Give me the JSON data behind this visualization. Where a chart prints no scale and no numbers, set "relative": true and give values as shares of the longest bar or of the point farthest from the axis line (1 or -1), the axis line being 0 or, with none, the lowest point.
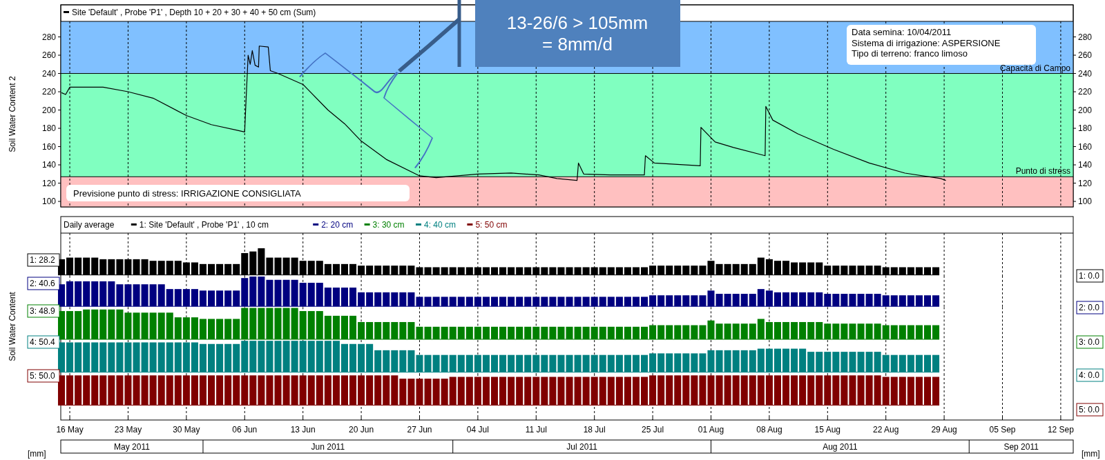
{
  "chart_data": [
    {
      "type": "line",
      "xlim": [
        "2011-05-14T22:00",
        "2011-09-13T12:00"
      ],
      "xticks": [
        {
          "value": "2011-05-16",
          "label": null
        },
        {
          "value": "2011-05-23",
          "label": null
        },
        {
          "value": "2011-05-30",
          "label": null
        },
        {
          "value": "2011-06-06",
          "label": null
        },
        {
          "value": "2011-06-13",
          "label": null
        },
        {
          "value": "2011-06-20",
          "label": null
        },
        {
          "value": "2011-06-27",
          "label": null
        },
        {
          "value": "2011-07-04",
          "label": null
        },
        {
          "value": "2011-07-11",
          "label": null
        },
        {
          "value": "2011-07-18",
          "label": null
        },
        {
          "value": "2011-07-25",
          "label": null
        },
        {
          "value": "2011-08-01",
          "label": null
        },
        {
          "value": "2011-08-08",
          "label": null
        },
        {
          "value": "2011-08-15",
          "label": null
        },
        {
          "value": "2011-08-22",
          "label": null
        },
        {
          "value": "2011-08-29",
          "label": null
        },
        {
          "value": "2011-09-05",
          "label": null
        },
        {
          "value": "2011-09-12",
          "label": null
        }
      ],
      "ylim": [
        94,
        297
      ],
      "yticks": [
        100,
        120,
        140,
        160,
        180,
        200,
        220,
        240,
        260,
        280
      ],
      "y2lim": [
        94,
        297
      ],
      "y2ticks": [
        100,
        120,
        140,
        160,
        180,
        200,
        220,
        240,
        260,
        280
      ],
      "ylabel": "Soil Water Content 2",
      "tick_labels": "y",
      "grid": "x",
      "legend": "top",
      "bands": [
        {
          "axis": "y",
          "from": 240,
          "to": 297,
          "color": "#80c0ff"
        },
        {
          "axis": "y",
          "from": 127,
          "to": 240,
          "color": "#80ffc0"
        },
        {
          "axis": "y",
          "from": 94,
          "to": 127,
          "color": "#ffc0c0"
        }
      ],
      "ref_lines": [
        {
          "axis": "y",
          "value": 240,
          "label": "Capacità di Campo",
          "color": "#000000"
        },
        {
          "axis": "y",
          "value": 127,
          "label": "Punto di stress",
          "color": "#000000"
        }
      ],
      "annotations": [
        "Previsione punto di stress: IRRIGAZIONE CONSIGLIATA",
        "Data semina: 10/04/2011\nSistema di irrigazione: ASPERSIONE\nTipo di terreno: franco limoso",
        "13-26/6 > 105mm\n= 8mm/d"
      ],
      "series": [
        {
          "name": "Site 'Default' , Probe 'P1' , Depth 10 + 20 + 30 + 40 + 50 cm (Sum)",
          "color": "#000000",
          "x": [
            "2011-05-15T00:00",
            "2011-05-15T12:00",
            "2011-05-16T00:00",
            "2011-05-20",
            "2011-05-23",
            "2011-05-26",
            "2011-05-30",
            "2011-06-02",
            "2011-06-05",
            "2011-06-06T00:00",
            "2011-06-06T04:00",
            "2011-06-06T10:00",
            "2011-06-06T16:00",
            "2011-06-06T22:00",
            "2011-06-07T06:00",
            "2011-06-07T16:00",
            "2011-06-07T18:00",
            "2011-06-08T20:00",
            "2011-06-09T02:00",
            "2011-06-10",
            "2011-06-13",
            "2011-06-16",
            "2011-06-18",
            "2011-06-20",
            "2011-06-23",
            "2011-06-27",
            "2011-06-29",
            "2011-07-04",
            "2011-07-08",
            "2011-07-11T08:00",
            "2011-07-13T12:00",
            "2011-07-15T22:00",
            "2011-07-16T02:00",
            "2011-07-16T17:00",
            "2011-07-19T22:00",
            "2011-07-24T00:00",
            "2011-07-24T03:00",
            "2011-07-25T05:00",
            "2011-07-30T17:00",
            "2011-07-30T19:00",
            "2011-08-01T12:00",
            "2011-08-03T17:00",
            "2011-08-07T12:00",
            "2011-08-07T14:00",
            "2011-08-08T10:00",
            "2011-08-11T10:00",
            "2011-08-15T17:00",
            "2011-08-20",
            "2011-08-24T07:00",
            "2011-08-28T14:00",
            "2011-08-29T05:00"
          ],
          "values": [
            219,
            217,
            225,
            225,
            220,
            213,
            194,
            184,
            178,
            176,
            211,
            260,
            250,
            265,
            249,
            247,
            270,
            269,
            243,
            240,
            228,
            200,
            185,
            166,
            146,
            128,
            126,
            130,
            131,
            129,
            125,
            123,
            142,
            130,
            129,
            129,
            150,
            142,
            139,
            181,
            165,
            159,
            150,
            204,
            189,
            174,
            157,
            142,
            131,
            125,
            123
          ]
        }
      ]
    },
    {
      "type": "bar",
      "relative": true,
      "xlim": [
        "2011-05-14T22:00",
        "2011-09-13T12:00"
      ],
      "xticks": [
        {
          "value": "2011-05-16",
          "label": null
        },
        {
          "value": "2011-05-23",
          "label": null
        },
        {
          "value": "2011-05-30",
          "label": null
        },
        {
          "value": "2011-06-06",
          "label": null
        },
        {
          "value": "2011-06-13",
          "label": null
        },
        {
          "value": "2011-06-20",
          "label": null
        },
        {
          "value": "2011-06-27",
          "label": null
        },
        {
          "value": "2011-07-04",
          "label": null
        },
        {
          "value": "2011-07-11",
          "label": null
        },
        {
          "value": "2011-07-18",
          "label": null
        },
        {
          "value": "2011-07-25",
          "label": null
        },
        {
          "value": "2011-08-01",
          "label": null
        },
        {
          "value": "2011-08-08",
          "label": null
        },
        {
          "value": "2011-08-15",
          "label": null
        },
        {
          "value": "2011-08-22",
          "label": null
        },
        {
          "value": "2011-08-29",
          "label": null
        },
        {
          "value": "2011-09-05",
          "label": null
        },
        {
          "value": "2011-09-12",
          "label": null
        }
      ],
      "tick_labels": false,
      "grid": "x",
      "legend": "top",
      "legend_title": "Daily average",
      "annotations": [
        "1: 28.2",
        "1: 0.0"
      ],
      "x": [
        "2011-05-15",
        "2011-05-16",
        "2011-05-17",
        "2011-05-18",
        "2011-05-19",
        "2011-05-20",
        "2011-05-21",
        "2011-05-22",
        "2011-05-23",
        "2011-05-24",
        "2011-05-25",
        "2011-05-26",
        "2011-05-27",
        "2011-05-28",
        "2011-05-29",
        "2011-05-30",
        "2011-05-31",
        "2011-06-01",
        "2011-06-02",
        "2011-06-03",
        "2011-06-04",
        "2011-06-05",
        "2011-06-06",
        "2011-06-07",
        "2011-06-08",
        "2011-06-09",
        "2011-06-10",
        "2011-06-11",
        "2011-06-12",
        "2011-06-13",
        "2011-06-14",
        "2011-06-15",
        "2011-06-16",
        "2011-06-17",
        "2011-06-18",
        "2011-06-19",
        "2011-06-20",
        "2011-06-21",
        "2011-06-22",
        "2011-06-23",
        "2011-06-24",
        "2011-06-25",
        "2011-06-26",
        "2011-06-27",
        "2011-06-28",
        "2011-06-29",
        "2011-06-30",
        "2011-07-01",
        "2011-07-02",
        "2011-07-03",
        "2011-07-04",
        "2011-07-05",
        "2011-07-06",
        "2011-07-07",
        "2011-07-08",
        "2011-07-09",
        "2011-07-10",
        "2011-07-11",
        "2011-07-12",
        "2011-07-13",
        "2011-07-14",
        "2011-07-15",
        "2011-07-16",
        "2011-07-17",
        "2011-07-18",
        "2011-07-19",
        "2011-07-20",
        "2011-07-21",
        "2011-07-22",
        "2011-07-23",
        "2011-07-24",
        "2011-07-25",
        "2011-07-26",
        "2011-07-27",
        "2011-07-28",
        "2011-07-29",
        "2011-07-30",
        "2011-07-31",
        "2011-08-01",
        "2011-08-02",
        "2011-08-03",
        "2011-08-04",
        "2011-08-05",
        "2011-08-06",
        "2011-08-07",
        "2011-08-08",
        "2011-08-09",
        "2011-08-10",
        "2011-08-11",
        "2011-08-12",
        "2011-08-13",
        "2011-08-14",
        "2011-08-15",
        "2011-08-16",
        "2011-08-17",
        "2011-08-18",
        "2011-08-19",
        "2011-08-20",
        "2011-08-21",
        "2011-08-22",
        "2011-08-23",
        "2011-08-24",
        "2011-08-25",
        "2011-08-26",
        "2011-08-27",
        "2011-08-28"
      ],
      "series": [
        {
          "name": "1: Site 'Default' , Probe 'P1' , 10 cm",
          "color": "#000000",
          "values": [
            0.59,
            0.65,
            0.65,
            0.65,
            0.65,
            0.59,
            0.59,
            0.59,
            0.59,
            0.59,
            0.59,
            0.53,
            0.53,
            0.53,
            0.53,
            0.47,
            0.47,
            0.41,
            0.41,
            0.41,
            0.41,
            0.41,
            0.82,
            0.88,
            1,
            0.65,
            0.65,
            0.65,
            0.65,
            0.53,
            0.53,
            0.53,
            0.41,
            0.41,
            0.41,
            0.41,
            0.35,
            0.35,
            0.35,
            0.35,
            0.35,
            0.35,
            0.35,
            0.29,
            0.29,
            0.29,
            0.29,
            0.29,
            0.29,
            0.29,
            0.29,
            0.29,
            0.29,
            0.29,
            0.29,
            0.29,
            0.29,
            0.29,
            0.29,
            0.29,
            0.29,
            0.29,
            0.29,
            0.29,
            0.29,
            0.29,
            0.29,
            0.29,
            0.29,
            0.29,
            0.29,
            0.35,
            0.35,
            0.35,
            0.35,
            0.35,
            0.35,
            0.35,
            0.53,
            0.41,
            0.41,
            0.41,
            0.41,
            0.41,
            0.65,
            0.59,
            0.53,
            0.53,
            0.47,
            0.47,
            0.47,
            0.47,
            0.35,
            0.35,
            0.35,
            0.35,
            0.35,
            0.35,
            0.35,
            0.29,
            0.29,
            0.29,
            0.29,
            0.29,
            0.29,
            0.29
          ]
        }
      ]
    },
    {
      "type": "bar",
      "relative": true,
      "xlim": [
        "2011-05-14T22:00",
        "2011-09-13T12:00"
      ],
      "xticks": [
        {
          "value": "2011-05-16",
          "label": null
        },
        {
          "value": "2011-05-23",
          "label": null
        },
        {
          "value": "2011-05-30",
          "label": null
        },
        {
          "value": "2011-06-06",
          "label": null
        },
        {
          "value": "2011-06-13",
          "label": null
        },
        {
          "value": "2011-06-20",
          "label": null
        },
        {
          "value": "2011-06-27",
          "label": null
        },
        {
          "value": "2011-07-04",
          "label": null
        },
        {
          "value": "2011-07-11",
          "label": null
        },
        {
          "value": "2011-07-18",
          "label": null
        },
        {
          "value": "2011-07-25",
          "label": null
        },
        {
          "value": "2011-08-01",
          "label": null
        },
        {
          "value": "2011-08-08",
          "label": null
        },
        {
          "value": "2011-08-15",
          "label": null
        },
        {
          "value": "2011-08-22",
          "label": null
        },
        {
          "value": "2011-08-29",
          "label": null
        },
        {
          "value": "2011-09-05",
          "label": null
        },
        {
          "value": "2011-09-12",
          "label": null
        }
      ],
      "tick_labels": false,
      "grid": "x",
      "legend": "top",
      "annotations": [
        "2: 40.6",
        "2: 0.0"
      ],
      "x": [
        "2011-05-15",
        "2011-05-16",
        "2011-05-17",
        "2011-05-18",
        "2011-05-19",
        "2011-05-20",
        "2011-05-21",
        "2011-05-22",
        "2011-05-23",
        "2011-05-24",
        "2011-05-25",
        "2011-05-26",
        "2011-05-27",
        "2011-05-28",
        "2011-05-29",
        "2011-05-30",
        "2011-05-31",
        "2011-06-01",
        "2011-06-02",
        "2011-06-03",
        "2011-06-04",
        "2011-06-05",
        "2011-06-06",
        "2011-06-07",
        "2011-06-08",
        "2011-06-09",
        "2011-06-10",
        "2011-06-11",
        "2011-06-12",
        "2011-06-13",
        "2011-06-14",
        "2011-06-15",
        "2011-06-16",
        "2011-06-17",
        "2011-06-18",
        "2011-06-19",
        "2011-06-20",
        "2011-06-21",
        "2011-06-22",
        "2011-06-23",
        "2011-06-24",
        "2011-06-25",
        "2011-06-26",
        "2011-06-27",
        "2011-06-28",
        "2011-06-29",
        "2011-06-30",
        "2011-07-01",
        "2011-07-02",
        "2011-07-03",
        "2011-07-04",
        "2011-07-05",
        "2011-07-06",
        "2011-07-07",
        "2011-07-08",
        "2011-07-09",
        "2011-07-10",
        "2011-07-11",
        "2011-07-12",
        "2011-07-13",
        "2011-07-14",
        "2011-07-15",
        "2011-07-16",
        "2011-07-17",
        "2011-07-18",
        "2011-07-19",
        "2011-07-20",
        "2011-07-21",
        "2011-07-22",
        "2011-07-23",
        "2011-07-24",
        "2011-07-25",
        "2011-07-26",
        "2011-07-27",
        "2011-07-28",
        "2011-07-29",
        "2011-07-30",
        "2011-07-31",
        "2011-08-01",
        "2011-08-02",
        "2011-08-03",
        "2011-08-04",
        "2011-08-05",
        "2011-08-06",
        "2011-08-07",
        "2011-08-08",
        "2011-08-09",
        "2011-08-10",
        "2011-08-11",
        "2011-08-12",
        "2011-08-13",
        "2011-08-14",
        "2011-08-15",
        "2011-08-16",
        "2011-08-17",
        "2011-08-18",
        "2011-08-19",
        "2011-08-20",
        "2011-08-21",
        "2011-08-22",
        "2011-08-23",
        "2011-08-24",
        "2011-08-25",
        "2011-08-26",
        "2011-08-27",
        "2011-08-28"
      ],
      "series": [
        {
          "name": "2: 20 cm",
          "color": "#000080",
          "values": [
            0.74,
            0.84,
            0.84,
            0.84,
            0.84,
            0.84,
            0.84,
            0.74,
            0.74,
            0.74,
            0.74,
            0.74,
            0.74,
            0.58,
            0.58,
            0.58,
            0.58,
            0.53,
            0.53,
            0.53,
            0.53,
            0.53,
            0.95,
            1,
            1,
            0.89,
            0.89,
            0.89,
            0.89,
            0.79,
            0.79,
            0.79,
            0.63,
            0.63,
            0.63,
            0.63,
            0.47,
            0.47,
            0.47,
            0.47,
            0.47,
            0.47,
            0.47,
            0.32,
            0.32,
            0.32,
            0.32,
            0.32,
            0.32,
            0.32,
            0.32,
            0.32,
            0.32,
            0.32,
            0.32,
            0.32,
            0.32,
            0.32,
            0.32,
            0.32,
            0.32,
            0.32,
            0.32,
            0.32,
            0.32,
            0.32,
            0.32,
            0.32,
            0.32,
            0.32,
            0.32,
            0.37,
            0.37,
            0.37,
            0.37,
            0.37,
            0.37,
            0.37,
            0.53,
            0.42,
            0.42,
            0.42,
            0.42,
            0.42,
            0.58,
            0.53,
            0.47,
            0.47,
            0.47,
            0.47,
            0.47,
            0.47,
            0.42,
            0.42,
            0.42,
            0.42,
            0.42,
            0.42,
            0.42,
            0.37,
            0.37,
            0.37,
            0.37,
            0.37,
            0.37,
            0.37
          ]
        }
      ]
    },
    {
      "type": "bar",
      "relative": true,
      "xlim": [
        "2011-05-14T22:00",
        "2011-09-13T12:00"
      ],
      "xticks": [
        {
          "value": "2011-05-16",
          "label": null
        },
        {
          "value": "2011-05-23",
          "label": null
        },
        {
          "value": "2011-05-30",
          "label": null
        },
        {
          "value": "2011-06-06",
          "label": null
        },
        {
          "value": "2011-06-13",
          "label": null
        },
        {
          "value": "2011-06-20",
          "label": null
        },
        {
          "value": "2011-06-27",
          "label": null
        },
        {
          "value": "2011-07-04",
          "label": null
        },
        {
          "value": "2011-07-11",
          "label": null
        },
        {
          "value": "2011-07-18",
          "label": null
        },
        {
          "value": "2011-07-25",
          "label": null
        },
        {
          "value": "2011-08-01",
          "label": null
        },
        {
          "value": "2011-08-08",
          "label": null
        },
        {
          "value": "2011-08-15",
          "label": null
        },
        {
          "value": "2011-08-22",
          "label": null
        },
        {
          "value": "2011-08-29",
          "label": null
        },
        {
          "value": "2011-09-05",
          "label": null
        },
        {
          "value": "2011-09-12",
          "label": null
        }
      ],
      "tick_labels": false,
      "grid": "x",
      "legend": "top",
      "ylabel": "Soil Water Content",
      "annotations": [
        "3: 48.9",
        "3: 0.0"
      ],
      "x": [
        "2011-05-15",
        "2011-05-16",
        "2011-05-17",
        "2011-05-18",
        "2011-05-19",
        "2011-05-20",
        "2011-05-21",
        "2011-05-22",
        "2011-05-23",
        "2011-05-24",
        "2011-05-25",
        "2011-05-26",
        "2011-05-27",
        "2011-05-28",
        "2011-05-29",
        "2011-05-30",
        "2011-05-31",
        "2011-06-01",
        "2011-06-02",
        "2011-06-03",
        "2011-06-04",
        "2011-06-05",
        "2011-06-06",
        "2011-06-07",
        "2011-06-08",
        "2011-06-09",
        "2011-06-10",
        "2011-06-11",
        "2011-06-12",
        "2011-06-13",
        "2011-06-14",
        "2011-06-15",
        "2011-06-16",
        "2011-06-17",
        "2011-06-18",
        "2011-06-19",
        "2011-06-20",
        "2011-06-21",
        "2011-06-22",
        "2011-06-23",
        "2011-06-24",
        "2011-06-25",
        "2011-06-26",
        "2011-06-27",
        "2011-06-28",
        "2011-06-29",
        "2011-06-30",
        "2011-07-01",
        "2011-07-02",
        "2011-07-03",
        "2011-07-04",
        "2011-07-05",
        "2011-07-06",
        "2011-07-07",
        "2011-07-08",
        "2011-07-09",
        "2011-07-10",
        "2011-07-11",
        "2011-07-12",
        "2011-07-13",
        "2011-07-14",
        "2011-07-15",
        "2011-07-16",
        "2011-07-17",
        "2011-07-18",
        "2011-07-19",
        "2011-07-20",
        "2011-07-21",
        "2011-07-22",
        "2011-07-23",
        "2011-07-24",
        "2011-07-25",
        "2011-07-26",
        "2011-07-27",
        "2011-07-28",
        "2011-07-29",
        "2011-07-30",
        "2011-07-31",
        "2011-08-01",
        "2011-08-02",
        "2011-08-03",
        "2011-08-04",
        "2011-08-05",
        "2011-08-06",
        "2011-08-07",
        "2011-08-08",
        "2011-08-09",
        "2011-08-10",
        "2011-08-11",
        "2011-08-12",
        "2011-08-13",
        "2011-08-14",
        "2011-08-15",
        "2011-08-16",
        "2011-08-17",
        "2011-08-18",
        "2011-08-19",
        "2011-08-20",
        "2011-08-21",
        "2011-08-22",
        "2011-08-23",
        "2011-08-24",
        "2011-08-25",
        "2011-08-26",
        "2011-08-27",
        "2011-08-28"
      ],
      "series": [
        {
          "name": "3: 30 cm",
          "color": "#008000",
          "values": [
            0.9,
            0.9,
            0.9,
            0.95,
            0.95,
            0.95,
            0.95,
            0.95,
            0.85,
            0.85,
            0.85,
            0.85,
            0.85,
            0.85,
            0.7,
            0.7,
            0.7,
            0.65,
            0.65,
            0.65,
            0.65,
            0.65,
            1,
            1,
            1,
            1,
            1,
            1,
            1,
            0.9,
            0.9,
            0.9,
            0.75,
            0.75,
            0.75,
            0.75,
            0.55,
            0.55,
            0.55,
            0.55,
            0.55,
            0.55,
            0.55,
            0.4,
            0.4,
            0.4,
            0.4,
            0.4,
            0.4,
            0.4,
            0.4,
            0.4,
            0.4,
            0.4,
            0.4,
            0.4,
            0.4,
            0.4,
            0.4,
            0.4,
            0.4,
            0.4,
            0.4,
            0.4,
            0.4,
            0.4,
            0.4,
            0.4,
            0.4,
            0.4,
            0.4,
            0.45,
            0.45,
            0.45,
            0.45,
            0.45,
            0.45,
            0.45,
            0.6,
            0.5,
            0.5,
            0.5,
            0.5,
            0.5,
            0.65,
            0.55,
            0.55,
            0.55,
            0.55,
            0.55,
            0.55,
            0.55,
            0.5,
            0.5,
            0.5,
            0.5,
            0.5,
            0.5,
            0.5,
            0.45,
            0.45,
            0.45,
            0.45,
            0.45,
            0.45,
            0.45
          ]
        }
      ]
    },
    {
      "type": "bar",
      "relative": true,
      "xlim": [
        "2011-05-14T22:00",
        "2011-09-13T12:00"
      ],
      "xticks": [
        {
          "value": "2011-05-16",
          "label": null
        },
        {
          "value": "2011-05-23",
          "label": null
        },
        {
          "value": "2011-05-30",
          "label": null
        },
        {
          "value": "2011-06-06",
          "label": null
        },
        {
          "value": "2011-06-13",
          "label": null
        },
        {
          "value": "2011-06-20",
          "label": null
        },
        {
          "value": "2011-06-27",
          "label": null
        },
        {
          "value": "2011-07-04",
          "label": null
        },
        {
          "value": "2011-07-11",
          "label": null
        },
        {
          "value": "2011-07-18",
          "label": null
        },
        {
          "value": "2011-07-25",
          "label": null
        },
        {
          "value": "2011-08-01",
          "label": null
        },
        {
          "value": "2011-08-08",
          "label": null
        },
        {
          "value": "2011-08-15",
          "label": null
        },
        {
          "value": "2011-08-22",
          "label": null
        },
        {
          "value": "2011-08-29",
          "label": null
        },
        {
          "value": "2011-09-05",
          "label": null
        },
        {
          "value": "2011-09-12",
          "label": null
        }
      ],
      "tick_labels": false,
      "grid": "x",
      "legend": "top",
      "annotations": [
        "4: 50.4",
        "4: 0.0"
      ],
      "x": [
        "2011-05-15",
        "2011-05-16",
        "2011-05-17",
        "2011-05-18",
        "2011-05-19",
        "2011-05-20",
        "2011-05-21",
        "2011-05-22",
        "2011-05-23",
        "2011-05-24",
        "2011-05-25",
        "2011-05-26",
        "2011-05-27",
        "2011-05-28",
        "2011-05-29",
        "2011-05-30",
        "2011-05-31",
        "2011-06-01",
        "2011-06-02",
        "2011-06-03",
        "2011-06-04",
        "2011-06-05",
        "2011-06-06",
        "2011-06-07",
        "2011-06-08",
        "2011-06-09",
        "2011-06-10",
        "2011-06-11",
        "2011-06-12",
        "2011-06-13",
        "2011-06-14",
        "2011-06-15",
        "2011-06-16",
        "2011-06-17",
        "2011-06-18",
        "2011-06-19",
        "2011-06-20",
        "2011-06-21",
        "2011-06-22",
        "2011-06-23",
        "2011-06-24",
        "2011-06-25",
        "2011-06-26",
        "2011-06-27",
        "2011-06-28",
        "2011-06-29",
        "2011-06-30",
        "2011-07-01",
        "2011-07-02",
        "2011-07-03",
        "2011-07-04",
        "2011-07-05",
        "2011-07-06",
        "2011-07-07",
        "2011-07-08",
        "2011-07-09",
        "2011-07-10",
        "2011-07-11",
        "2011-07-12",
        "2011-07-13",
        "2011-07-14",
        "2011-07-15",
        "2011-07-16",
        "2011-07-17",
        "2011-07-18",
        "2011-07-19",
        "2011-07-20",
        "2011-07-21",
        "2011-07-22",
        "2011-07-23",
        "2011-07-24",
        "2011-07-25",
        "2011-07-26",
        "2011-07-27",
        "2011-07-28",
        "2011-07-29",
        "2011-07-30",
        "2011-07-31",
        "2011-08-01",
        "2011-08-02",
        "2011-08-03",
        "2011-08-04",
        "2011-08-05",
        "2011-08-06",
        "2011-08-07",
        "2011-08-08",
        "2011-08-09",
        "2011-08-10",
        "2011-08-11",
        "2011-08-12",
        "2011-08-13",
        "2011-08-14",
        "2011-08-15",
        "2011-08-16",
        "2011-08-17",
        "2011-08-18",
        "2011-08-19",
        "2011-08-20",
        "2011-08-21",
        "2011-08-22",
        "2011-08-23",
        "2011-08-24",
        "2011-08-25",
        "2011-08-26",
        "2011-08-27",
        "2011-08-28"
      ],
      "series": [
        {
          "name": "4: 40 cm",
          "color": "#008080",
          "values": [
            0.95,
            0.95,
            0.95,
            0.95,
            0.95,
            0.95,
            0.95,
            0.95,
            0.95,
            0.95,
            0.95,
            0.95,
            0.95,
            0.95,
            0.95,
            0.95,
            0.95,
            0.9,
            0.9,
            0.9,
            0.9,
            0.9,
            1,
            1,
            1,
            1,
            1,
            1,
            1,
            1,
            1,
            1,
            1,
            1,
            0.9,
            0.9,
            0.9,
            0.9,
            0.7,
            0.7,
            0.7,
            0.7,
            0.7,
            0.55,
            0.55,
            0.55,
            0.55,
            0.55,
            0.55,
            0.55,
            0.55,
            0.55,
            0.55,
            0.55,
            0.55,
            0.55,
            0.55,
            0.55,
            0.55,
            0.55,
            0.55,
            0.55,
            0.55,
            0.55,
            0.55,
            0.55,
            0.55,
            0.55,
            0.55,
            0.55,
            0.55,
            0.6,
            0.6,
            0.6,
            0.6,
            0.6,
            0.6,
            0.6,
            0.7,
            0.7,
            0.7,
            0.7,
            0.7,
            0.7,
            0.75,
            0.75,
            0.75,
            0.75,
            0.75,
            0.75,
            0.65,
            0.65,
            0.65,
            0.65,
            0.65,
            0.65,
            0.65,
            0.65,
            0.65,
            0.55,
            0.55,
            0.55,
            0.55,
            0.55,
            0.55,
            0.55
          ]
        }
      ]
    },
    {
      "type": "bar",
      "relative": true,
      "xlim": [
        "2011-05-14T22:00",
        "2011-09-13T12:00"
      ],
      "xticks": [
        {
          "value": "2011-05-16",
          "label": "16 May"
        },
        {
          "value": "2011-05-23",
          "label": "23 May"
        },
        {
          "value": "2011-05-30",
          "label": "30 May"
        },
        {
          "value": "2011-06-06",
          "label": "06 Jun"
        },
        {
          "value": "2011-06-13",
          "label": "13 Jun"
        },
        {
          "value": "2011-06-20",
          "label": "20 Jun"
        },
        {
          "value": "2011-06-27",
          "label": "27 Jun"
        },
        {
          "value": "2011-07-04",
          "label": "04 Jul"
        },
        {
          "value": "2011-07-11",
          "label": "11 Jul"
        },
        {
          "value": "2011-07-18",
          "label": "18 Jul"
        },
        {
          "value": "2011-07-25",
          "label": "25 Jul"
        },
        {
          "value": "2011-08-01",
          "label": "01 Aug"
        },
        {
          "value": "2011-08-08",
          "label": "08 Aug"
        },
        {
          "value": "2011-08-15",
          "label": "15 Aug"
        },
        {
          "value": "2011-08-22",
          "label": "22 Aug"
        },
        {
          "value": "2011-08-29",
          "label": "29 Aug"
        },
        {
          "value": "2011-09-05",
          "label": "05 Sep"
        },
        {
          "value": "2011-09-12",
          "label": "12 Sep"
        }
      ],
      "tick_labels": "x",
      "grid": "x",
      "legend": "top",
      "annotations": [
        "5: 50.0",
        "5: 0.0",
        "[mm]",
        "[mm]",
        "May 2011",
        "Jun 2011",
        "Jul 2011",
        "Aug 2011",
        "Sep 2011"
      ],
      "x": [
        "2011-05-15",
        "2011-05-16",
        "2011-05-17",
        "2011-05-18",
        "2011-05-19",
        "2011-05-20",
        "2011-05-21",
        "2011-05-22",
        "2011-05-23",
        "2011-05-24",
        "2011-05-25",
        "2011-05-26",
        "2011-05-27",
        "2011-05-28",
        "2011-05-29",
        "2011-05-30",
        "2011-05-31",
        "2011-06-01",
        "2011-06-02",
        "2011-06-03",
        "2011-06-04",
        "2011-06-05",
        "2011-06-06",
        "2011-06-07",
        "2011-06-08",
        "2011-06-09",
        "2011-06-10",
        "2011-06-11",
        "2011-06-12",
        "2011-06-13",
        "2011-06-14",
        "2011-06-15",
        "2011-06-16",
        "2011-06-17",
        "2011-06-18",
        "2011-06-19",
        "2011-06-20",
        "2011-06-21",
        "2011-06-22",
        "2011-06-23",
        "2011-06-24",
        "2011-06-25",
        "2011-06-26",
        "2011-06-27",
        "2011-06-28",
        "2011-06-29",
        "2011-06-30",
        "2011-07-01",
        "2011-07-02",
        "2011-07-03",
        "2011-07-04",
        "2011-07-05",
        "2011-07-06",
        "2011-07-07",
        "2011-07-08",
        "2011-07-09",
        "2011-07-10",
        "2011-07-11",
        "2011-07-12",
        "2011-07-13",
        "2011-07-14",
        "2011-07-15",
        "2011-07-16",
        "2011-07-17",
        "2011-07-18",
        "2011-07-19",
        "2011-07-20",
        "2011-07-21",
        "2011-07-22",
        "2011-07-23",
        "2011-07-24",
        "2011-07-25",
        "2011-07-26",
        "2011-07-27",
        "2011-07-28",
        "2011-07-29",
        "2011-07-30",
        "2011-07-31",
        "2011-08-01",
        "2011-08-02",
        "2011-08-03",
        "2011-08-04",
        "2011-08-05",
        "2011-08-06",
        "2011-08-07",
        "2011-08-08",
        "2011-08-09",
        "2011-08-10",
        "2011-08-11",
        "2011-08-12",
        "2011-08-13",
        "2011-08-14",
        "2011-08-15",
        "2011-08-16",
        "2011-08-17",
        "2011-08-18",
        "2011-08-19",
        "2011-08-20",
        "2011-08-21",
        "2011-08-22",
        "2011-08-23",
        "2011-08-24",
        "2011-08-25",
        "2011-08-26",
        "2011-08-27",
        "2011-08-28"
      ],
      "series": [
        {
          "name": "5: 50 cm",
          "color": "#800000",
          "values": [
            1,
            1,
            1,
            1,
            1,
            1,
            1,
            1,
            1,
            1,
            1,
            1,
            1,
            1,
            1,
            1,
            1,
            1,
            1,
            1,
            1,
            1,
            1,
            1,
            1,
            1,
            1,
            1,
            1,
            1,
            1,
            1,
            1,
            1,
            1,
            1,
            1,
            1,
            1,
            1,
            1,
            0.89,
            0.89,
            0.89,
            0.89,
            0.89,
            0.89,
            0.95,
            0.95,
            0.95,
            0.95,
            0.95,
            0.95,
            0.95,
            0.95,
            0.95,
            0.95,
            0.95,
            0.95,
            0.95,
            0.95,
            0.95,
            0.95,
            0.95,
            0.95,
            0.95,
            0.95,
            0.95,
            0.95,
            0.95,
            0.95,
            1,
            1,
            1,
            1,
            1,
            1,
            1,
            1,
            1,
            1,
            1,
            1,
            1,
            1,
            1,
            1,
            1,
            1,
            1,
            1,
            1,
            1,
            1,
            1,
            1,
            1,
            1,
            1,
            0.95,
            0.95,
            0.95,
            0.95,
            0.95,
            0.95,
            0.95
          ]
        }
      ]
    }
  ]
}
